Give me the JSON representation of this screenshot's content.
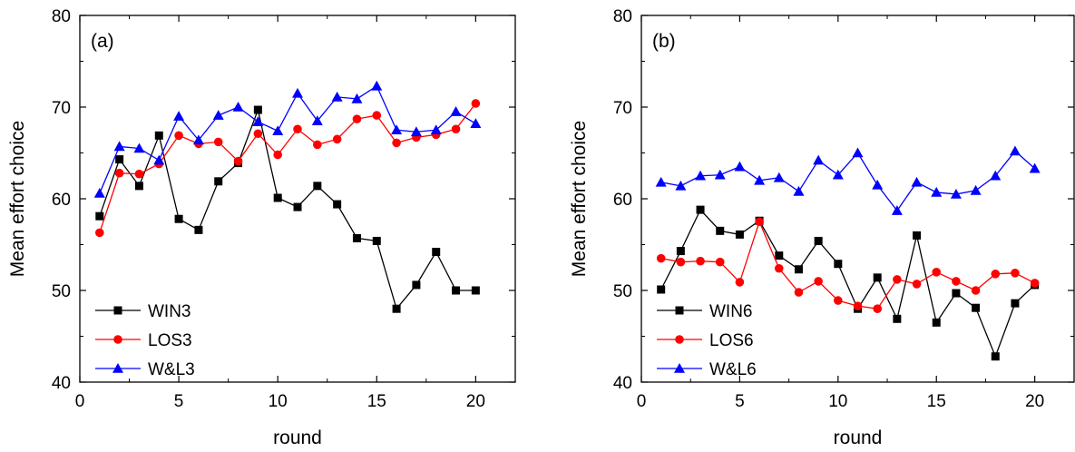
{
  "chart_data": [
    {
      "type": "line",
      "panel_label": "(a)",
      "xlabel": "round",
      "ylabel": "Mean effort choice",
      "xlim": [
        0,
        22
      ],
      "ylim": [
        40,
        80
      ],
      "x_ticks": [
        0,
        5,
        10,
        15,
        20
      ],
      "y_ticks": [
        40,
        50,
        60,
        70,
        80
      ],
      "grid": false,
      "legend_position": "bottom-left",
      "x": [
        1,
        2,
        3,
        4,
        5,
        6,
        7,
        8,
        9,
        10,
        11,
        12,
        13,
        14,
        15,
        16,
        17,
        18,
        19,
        20
      ],
      "series": [
        {
          "name": "WIN3",
          "color": "#000000",
          "marker": "square",
          "values": [
            58.1,
            64.3,
            61.4,
            66.9,
            57.8,
            56.6,
            61.9,
            63.9,
            69.7,
            60.1,
            59.1,
            61.4,
            59.4,
            55.7,
            55.4,
            48.0,
            50.6,
            54.2,
            50.0,
            50.0
          ]
        },
        {
          "name": "LOS3",
          "color": "#ff0000",
          "marker": "circle",
          "values": [
            56.3,
            62.8,
            62.7,
            63.8,
            66.9,
            66.0,
            66.2,
            64.1,
            67.1,
            64.8,
            67.6,
            65.9,
            66.5,
            68.7,
            69.1,
            66.1,
            66.7,
            67.0,
            67.6,
            70.4
          ]
        },
        {
          "name": "W&L3",
          "color": "#0000ff",
          "marker": "triangle",
          "values": [
            60.6,
            65.7,
            65.5,
            64.2,
            69.0,
            66.4,
            69.1,
            70.0,
            68.4,
            67.4,
            71.5,
            68.5,
            71.1,
            70.9,
            72.3,
            67.5,
            67.3,
            67.5,
            69.5,
            68.2
          ]
        }
      ]
    },
    {
      "type": "line",
      "panel_label": "(b)",
      "xlabel": "round",
      "ylabel": "Mean effort choice",
      "xlim": [
        0,
        22
      ],
      "ylim": [
        40,
        80
      ],
      "x_ticks": [
        0,
        5,
        10,
        15,
        20
      ],
      "y_ticks": [
        40,
        50,
        60,
        70,
        80
      ],
      "grid": false,
      "legend_position": "bottom-left",
      "x": [
        1,
        2,
        3,
        4,
        5,
        6,
        7,
        8,
        9,
        10,
        11,
        12,
        13,
        14,
        15,
        16,
        17,
        18,
        19,
        20
      ],
      "series": [
        {
          "name": "WIN6",
          "color": "#000000",
          "marker": "square",
          "values": [
            50.1,
            54.3,
            58.8,
            56.5,
            56.1,
            57.6,
            53.8,
            52.3,
            55.4,
            52.9,
            48.0,
            51.4,
            46.9,
            56.0,
            46.5,
            49.7,
            48.1,
            42.8,
            48.6,
            50.6
          ]
        },
        {
          "name": "LOS6",
          "color": "#ff0000",
          "marker": "circle",
          "values": [
            53.5,
            53.1,
            53.2,
            53.1,
            50.9,
            57.5,
            52.4,
            49.8,
            51.0,
            48.9,
            48.3,
            48.0,
            51.2,
            50.7,
            52.0,
            51.0,
            50.0,
            51.8,
            51.9,
            50.8
          ]
        },
        {
          "name": "W&L6",
          "color": "#0000ff",
          "marker": "triangle",
          "values": [
            61.8,
            61.4,
            62.5,
            62.6,
            63.5,
            62.0,
            62.3,
            60.8,
            64.2,
            62.6,
            65.0,
            61.5,
            58.7,
            61.8,
            60.7,
            60.5,
            60.9,
            62.5,
            65.2,
            63.3
          ]
        }
      ]
    }
  ]
}
